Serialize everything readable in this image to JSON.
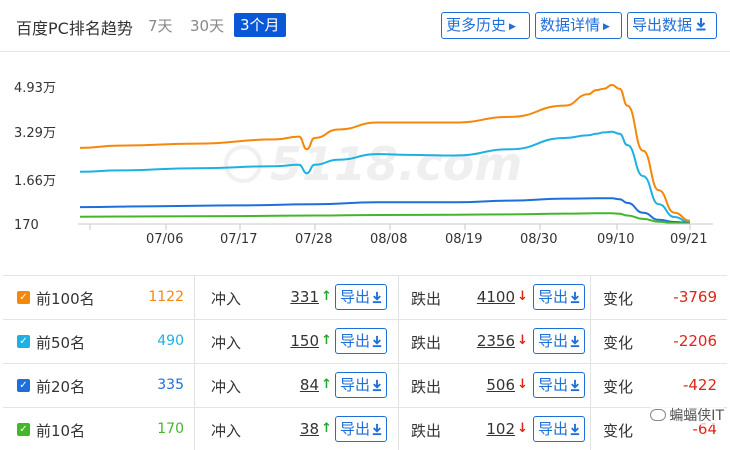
{
  "header": {
    "title": "百度PC排名趋势",
    "ranges": [
      "7天",
      "30天",
      "3个月"
    ],
    "active_range": "3个月",
    "buttons": {
      "history": "更多历史",
      "details": "数据详情",
      "export": "导出数据"
    }
  },
  "colors": {
    "accent": "#1e6fd9",
    "active_tab": "#0a58d8",
    "up": "#26a52e",
    "down": "#e2231a",
    "top100": "#f5870b",
    "top50": "#1fb0e3",
    "top20": "#1e6fd9",
    "top10": "#44b62c"
  },
  "chart_data": {
    "type": "line",
    "y_ticks": [
      "4.93万",
      "3.29万",
      "1.66万",
      "170"
    ],
    "x_ticks": [
      "07/06",
      "07/17",
      "07/28",
      "08/08",
      "08/19",
      "08/30",
      "09/10",
      "09/21"
    ],
    "ylim": [
      0,
      49300
    ],
    "grid": false,
    "watermark": "5118.com",
    "series": [
      {
        "name": "前100名",
        "color": "#f5870b",
        "x": [
          0,
          5,
          15,
          25,
          28,
          29,
          30,
          33,
          38,
          42,
          48,
          55,
          62,
          65,
          66,
          67,
          68,
          69,
          70,
          72,
          74,
          76,
          78
        ],
        "y": [
          27000,
          27800,
          28500,
          30000,
          31000,
          26500,
          30500,
          33500,
          36000,
          36000,
          36000,
          38000,
          42000,
          46000,
          47500,
          48000,
          49300,
          48000,
          42000,
          26000,
          12000,
          4000,
          1122
        ]
      },
      {
        "name": "前50名",
        "color": "#1fb0e3",
        "x": [
          0,
          5,
          15,
          25,
          28,
          29,
          30,
          33,
          38,
          42,
          48,
          55,
          62,
          65,
          66,
          67,
          68,
          69,
          70,
          72,
          74,
          76,
          78
        ],
        "y": [
          18500,
          19000,
          19800,
          20500,
          21000,
          18000,
          21000,
          22800,
          24800,
          24500,
          24300,
          26500,
          30500,
          31500,
          32000,
          32500,
          32700,
          32000,
          28000,
          17000,
          7000,
          2500,
          490
        ]
      },
      {
        "name": "前20名",
        "color": "#1e6fd9",
        "x": [
          0,
          10,
          20,
          30,
          38,
          48,
          55,
          62,
          66,
          68,
          69,
          70,
          72,
          74,
          76,
          78
        ],
        "y": [
          6000,
          6300,
          6600,
          7000,
          7700,
          7700,
          8300,
          9000,
          9100,
          9100,
          8800,
          7500,
          4000,
          1500,
          700,
          335
        ]
      },
      {
        "name": "前10名",
        "color": "#44b62c",
        "x": [
          0,
          10,
          20,
          30,
          38,
          48,
          55,
          62,
          66,
          68,
          69,
          70,
          72,
          74,
          76,
          78
        ],
        "y": [
          2600,
          2700,
          2800,
          3000,
          3200,
          3300,
          3400,
          3700,
          3800,
          3800,
          3600,
          3000,
          1800,
          800,
          350,
          170
        ]
      }
    ]
  },
  "table": {
    "labels": {
      "rush_in": "冲入",
      "drop_out": "跌出",
      "change": "变化",
      "export": "导出"
    },
    "rows": [
      {
        "name": "前100名",
        "value": "1122",
        "color": "#f5870b",
        "rush_in": "331",
        "drop_out": "4100",
        "change": "-3769"
      },
      {
        "name": "前50名",
        "value": "490",
        "color": "#1fb0e3",
        "rush_in": "150",
        "drop_out": "2356",
        "change": "-2206"
      },
      {
        "name": "前20名",
        "value": "335",
        "color": "#1e6fd9",
        "rush_in": "84",
        "drop_out": "506",
        "change": "-422"
      },
      {
        "name": "前10名",
        "value": "170",
        "color": "#44b62c",
        "rush_in": "38",
        "drop_out": "102",
        "change": "-64"
      }
    ]
  },
  "watermark": "蝙蝠侠IT"
}
